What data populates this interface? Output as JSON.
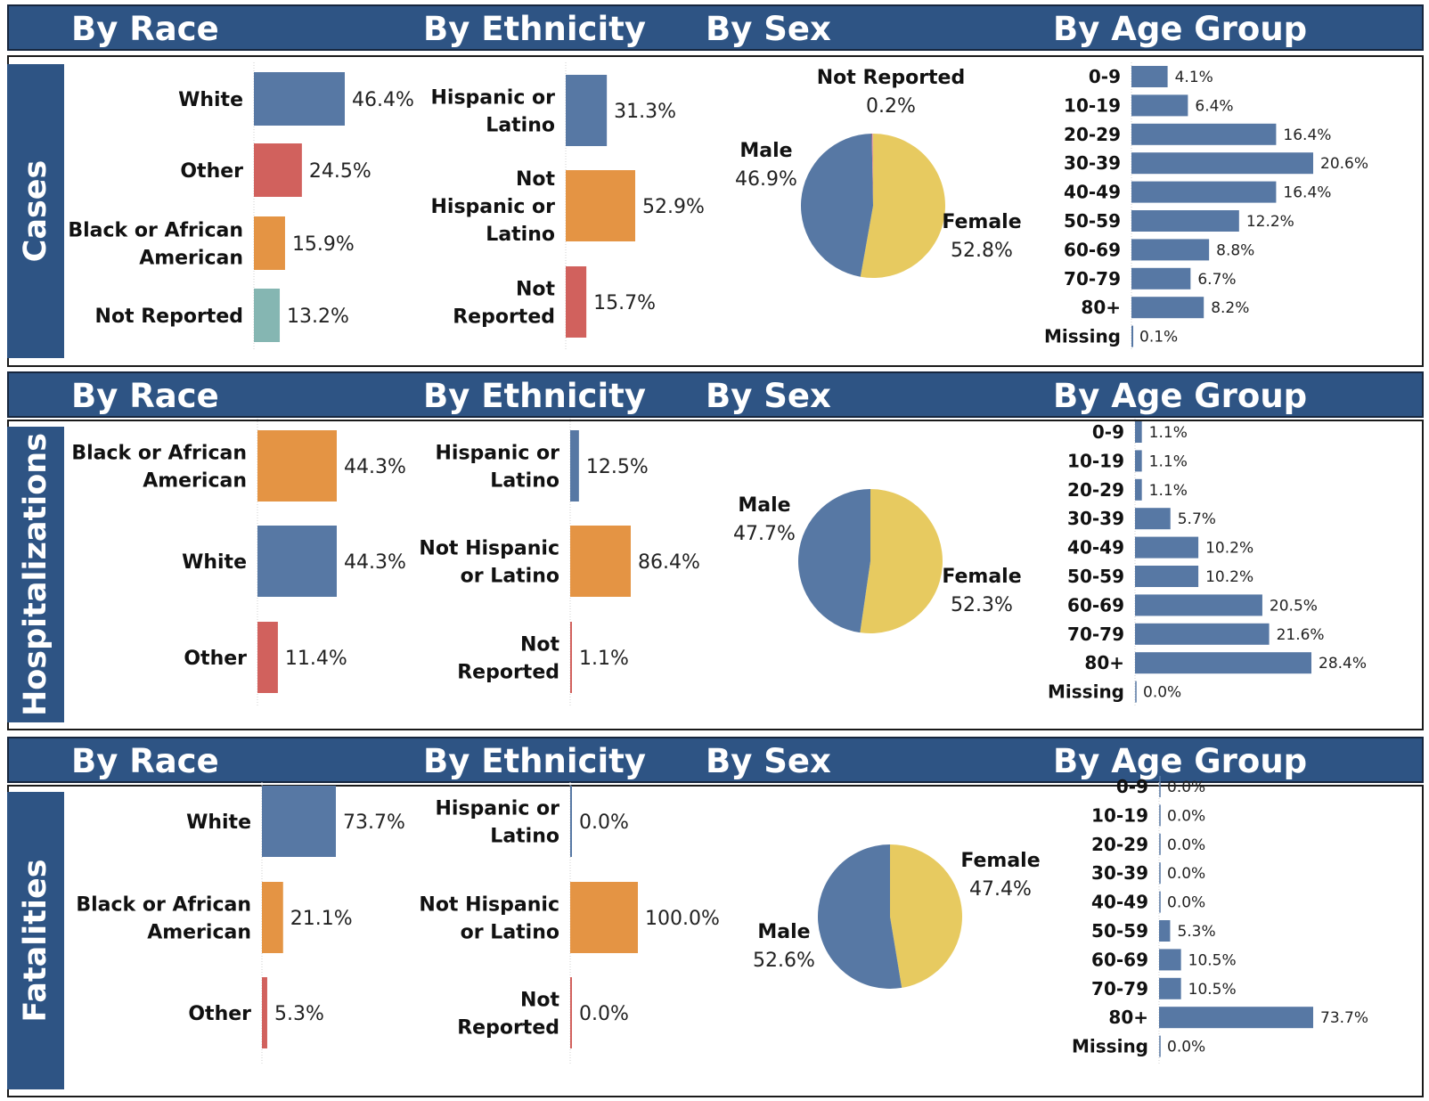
{
  "colors": {
    "header_bg": "#2e5484",
    "blue": "#5778a4",
    "orange": "#e49444",
    "red": "#d1615d",
    "teal": "#85b6b2",
    "yellow": "#e7ca60"
  },
  "headers": {
    "race": "By Race",
    "ethnicity": "By Ethnicity",
    "sex": "By Sex",
    "age": "By Age Group"
  },
  "chart_data": [
    {
      "section": "Cases",
      "race": {
        "type": "bar",
        "categories": [
          [
            "White"
          ],
          [
            "Other"
          ],
          [
            "Black or African",
            "American"
          ],
          [
            "Not Reported"
          ]
        ],
        "values": [
          46.4,
          24.5,
          15.9,
          13.2
        ],
        "labels": [
          "46.4%",
          "24.5%",
          "15.9%",
          "13.2%"
        ],
        "colors": [
          "blue",
          "red",
          "orange",
          "teal"
        ]
      },
      "ethnicity": {
        "type": "bar",
        "categories": [
          [
            "Hispanic or",
            "Latino"
          ],
          [
            "Not",
            "Hispanic or",
            "Latino"
          ],
          [
            "Not",
            "Reported"
          ]
        ],
        "values": [
          31.3,
          52.9,
          15.7
        ],
        "labels": [
          "31.3%",
          "52.9%",
          "15.7%"
        ],
        "colors": [
          "blue",
          "orange",
          "red"
        ]
      },
      "sex": {
        "type": "pie",
        "slices": [
          {
            "name": "Female",
            "value": 52.8,
            "label": "52.8%",
            "color": "yellow"
          },
          {
            "name": "Male",
            "value": 46.9,
            "label": "46.9%",
            "color": "blue"
          },
          {
            "name": "Not Reported",
            "value": 0.2,
            "label": "0.2%",
            "color": "red"
          }
        ]
      },
      "age": {
        "type": "bar",
        "categories": [
          "0-9",
          "10-19",
          "20-29",
          "30-39",
          "40-49",
          "50-59",
          "60-69",
          "70-79",
          "80+",
          "Missing"
        ],
        "values": [
          4.1,
          6.4,
          16.4,
          20.6,
          16.4,
          12.2,
          8.8,
          6.7,
          8.2,
          0.1
        ],
        "labels": [
          "4.1%",
          "6.4%",
          "16.4%",
          "20.6%",
          "16.4%",
          "12.2%",
          "8.8%",
          "6.7%",
          "8.2%",
          "0.1%"
        ]
      }
    },
    {
      "section": "Hospitalizations",
      "race": {
        "type": "bar",
        "categories": [
          [
            "Black or African",
            "American"
          ],
          [
            "White"
          ],
          [
            "Other"
          ]
        ],
        "values": [
          44.3,
          44.3,
          11.4
        ],
        "labels": [
          "44.3%",
          "44.3%",
          "11.4%"
        ],
        "colors": [
          "orange",
          "blue",
          "red"
        ]
      },
      "ethnicity": {
        "type": "bar",
        "categories": [
          [
            "Hispanic or",
            "Latino"
          ],
          [
            "Not Hispanic",
            "or Latino"
          ],
          [
            "Not",
            "Reported"
          ]
        ],
        "values": [
          12.5,
          86.4,
          1.1
        ],
        "labels": [
          "12.5%",
          "86.4%",
          "1.1%"
        ],
        "colors": [
          "blue",
          "orange",
          "red"
        ]
      },
      "sex": {
        "type": "pie",
        "slices": [
          {
            "name": "Female",
            "value": 52.3,
            "label": "52.3%",
            "color": "yellow"
          },
          {
            "name": "Male",
            "value": 47.7,
            "label": "47.7%",
            "color": "blue"
          }
        ]
      },
      "age": {
        "type": "bar",
        "categories": [
          "0-9",
          "10-19",
          "20-29",
          "30-39",
          "40-49",
          "50-59",
          "60-69",
          "70-79",
          "80+",
          "Missing"
        ],
        "values": [
          1.1,
          1.1,
          1.1,
          5.7,
          10.2,
          10.2,
          20.5,
          21.6,
          28.4,
          0.0
        ],
        "labels": [
          "1.1%",
          "1.1%",
          "1.1%",
          "5.7%",
          "10.2%",
          "10.2%",
          "20.5%",
          "21.6%",
          "28.4%",
          "0.0%"
        ]
      }
    },
    {
      "section": "Fatalities",
      "race": {
        "type": "bar",
        "categories": [
          [
            "White"
          ],
          [
            "Black or African",
            "American"
          ],
          [
            "Other"
          ]
        ],
        "values": [
          73.7,
          21.1,
          5.3
        ],
        "labels": [
          "73.7%",
          "21.1%",
          "5.3%"
        ],
        "colors": [
          "blue",
          "orange",
          "red"
        ]
      },
      "ethnicity": {
        "type": "bar",
        "categories": [
          [
            "Hispanic or",
            "Latino"
          ],
          [
            "Not Hispanic",
            "or Latino"
          ],
          [
            "Not",
            "Reported"
          ]
        ],
        "values": [
          0.0,
          100.0,
          0.0
        ],
        "labels": [
          "0.0%",
          "100.0%",
          "0.0%"
        ],
        "colors": [
          "blue",
          "orange",
          "red"
        ]
      },
      "sex": {
        "type": "pie",
        "slices": [
          {
            "name": "Female",
            "value": 47.4,
            "label": "47.4%",
            "color": "yellow"
          },
          {
            "name": "Male",
            "value": 52.6,
            "label": "52.6%",
            "color": "blue"
          }
        ]
      },
      "age": {
        "type": "bar",
        "categories": [
          "0-9",
          "10-19",
          "20-29",
          "30-39",
          "40-49",
          "50-59",
          "60-69",
          "70-79",
          "80+",
          "Missing"
        ],
        "values": [
          0.0,
          0.0,
          0.0,
          0.0,
          0.0,
          5.3,
          10.5,
          10.5,
          73.7,
          0.0
        ],
        "labels": [
          "0.0%",
          "0.0%",
          "0.0%",
          "0.0%",
          "0.0%",
          "5.3%",
          "10.5%",
          "10.5%",
          "73.7%",
          "0.0%"
        ]
      }
    }
  ]
}
